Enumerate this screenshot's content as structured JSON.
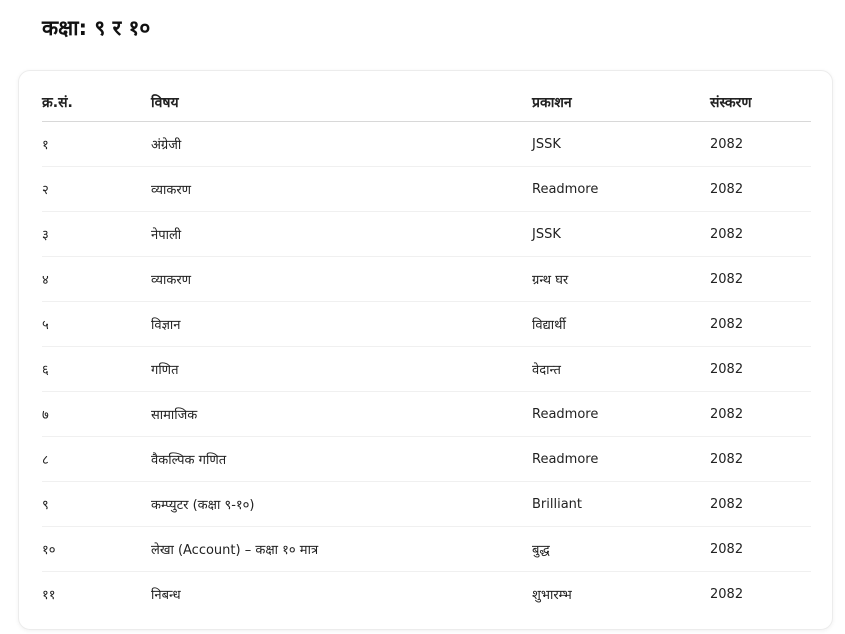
{
  "title": "कक्षा: ९ र १०",
  "table": {
    "headers": [
      "क्र.सं.",
      "विषय",
      "प्रकाशन",
      "संस्करण"
    ],
    "rows": [
      [
        "१",
        "अंग्रेजी",
        "JSSK",
        "2082"
      ],
      [
        "२",
        "व्याकरण",
        "Readmore",
        "2082"
      ],
      [
        "३",
        "नेपाली",
        "JSSK",
        "2082"
      ],
      [
        "४",
        "व्याकरण",
        "ग्रन्थ घर",
        "2082"
      ],
      [
        "५",
        "विज्ञान",
        "विद्यार्थी",
        "2082"
      ],
      [
        "६",
        "गणित",
        "वेदान्त",
        "2082"
      ],
      [
        "७",
        "सामाजिक",
        "Readmore",
        "2082"
      ],
      [
        "८",
        "वैकल्पिक गणित",
        "Readmore",
        "2082"
      ],
      [
        "९",
        "कम्प्युटर (कक्षा ९-१०)",
        "Brilliant",
        "2082"
      ],
      [
        "१०",
        "लेखा (Account) – कक्षा १० मात्र",
        "बुद्ध",
        "2082"
      ],
      [
        "११",
        "निबन्ध",
        "शुभारम्भ",
        "2082"
      ]
    ]
  }
}
